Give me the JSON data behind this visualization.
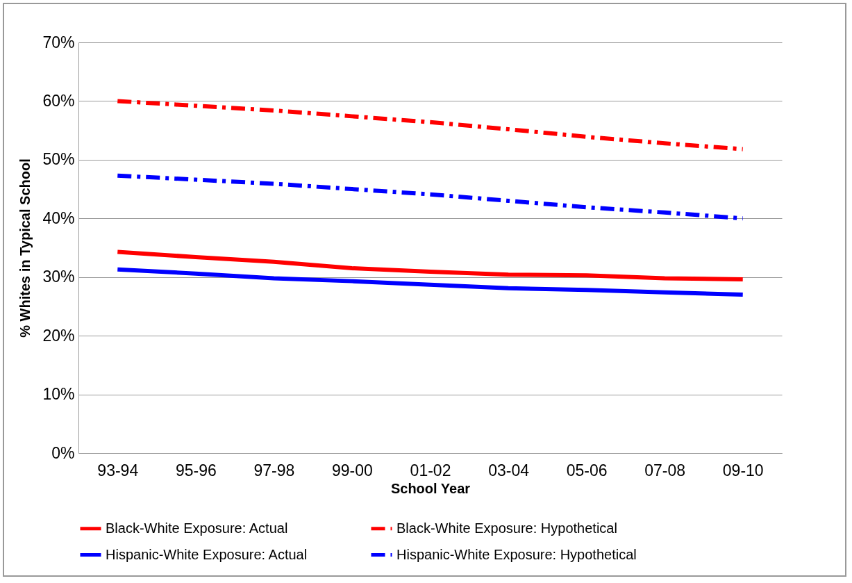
{
  "chart_data": {
    "type": "line",
    "xlabel": "School Year",
    "ylabel": "% Whites in Typical School",
    "categories": [
      "93-94",
      "95-96",
      "97-98",
      "99-00",
      "01-02",
      "03-04",
      "05-06",
      "07-08",
      "09-10"
    ],
    "series": [
      {
        "name": "Black-White Exposure: Actual",
        "color": "#ff0000",
        "line_style": "solid",
        "values": [
          34.3,
          33.4,
          32.6,
          31.5,
          30.9,
          30.4,
          30.3,
          29.8,
          29.6
        ]
      },
      {
        "name": "Black-White Exposure: Hypothetical",
        "color": "#ff0000",
        "line_style": "dashed",
        "values": [
          60,
          59.2,
          58.4,
          57.4,
          56.4,
          55.2,
          53.9,
          52.8,
          51.8
        ]
      },
      {
        "name": "Hispanic-White Exposure: Actual",
        "color": "#0000ff",
        "line_style": "solid",
        "values": [
          31.3,
          30.6,
          29.8,
          29.3,
          28.7,
          28.1,
          27.8,
          27.4,
          27.0
        ]
      },
      {
        "name": "Hispanic-White Exposure: Hypothetical",
        "color": "#0000ff",
        "line_style": "dashed",
        "values": [
          47.3,
          46.6,
          45.9,
          45.0,
          44.1,
          43.0,
          41.9,
          41.0,
          40.0
        ]
      }
    ],
    "ylim": [
      0,
      70
    ],
    "yticks": [
      {
        "value": 0,
        "label": "0%"
      },
      {
        "value": 10,
        "label": "10%"
      },
      {
        "value": 20,
        "label": "20%"
      },
      {
        "value": 30,
        "label": "30%"
      },
      {
        "value": 40,
        "label": "40%"
      },
      {
        "value": 50,
        "label": "50%"
      },
      {
        "value": 60,
        "label": "60%"
      },
      {
        "value": 70,
        "label": "70%"
      }
    ],
    "grid": "y",
    "legend": "bottom",
    "marker": "none"
  }
}
